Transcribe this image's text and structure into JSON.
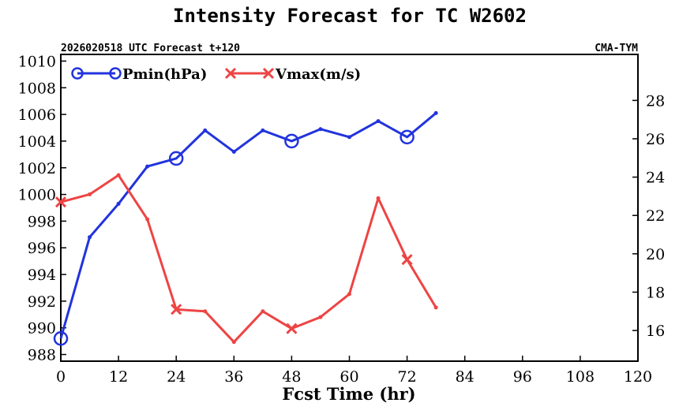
{
  "chart_data": {
    "type": "line",
    "title": "Intensity Forecast for TC W2602",
    "subtitle_left": "2026020518 UTC Forecast t+120",
    "subtitle_right": "CMA-TYM",
    "xlabel": "Fcst Time (hr)",
    "xlim": [
      0,
      120
    ],
    "x_ticks": [
      0,
      12,
      24,
      36,
      48,
      60,
      72,
      84,
      96,
      108,
      120
    ],
    "y_left_lim": [
      987.5,
      1010.5
    ],
    "y_left_ticks": [
      988,
      990,
      992,
      994,
      996,
      998,
      1000,
      1002,
      1004,
      1006,
      1008,
      1010
    ],
    "y_right_lim": [
      14.4,
      30.4
    ],
    "y_right_ticks": [
      16,
      18,
      20,
      22,
      24,
      26,
      28
    ],
    "series": [
      {
        "name": "Pmin(hPa)",
        "axis": "left",
        "color": "#2233dd",
        "marker": "circle",
        "x": [
          0,
          6,
          12,
          18,
          24,
          30,
          36,
          42,
          48,
          54,
          60,
          66,
          72,
          78
        ],
        "values": [
          989.2,
          996.8,
          999.3,
          1002.1,
          1002.7,
          1004.8,
          1003.2,
          1004.8,
          1004.0,
          1004.9,
          1004.3,
          1005.5,
          1004.3,
          1006.1
        ],
        "major_marker_x": [
          0,
          24,
          48,
          72
        ]
      },
      {
        "name": "Vmax(m/s)",
        "axis": "right",
        "color": "#ee4444",
        "marker": "x",
        "x": [
          0,
          6,
          12,
          18,
          24,
          30,
          36,
          42,
          48,
          54,
          60,
          66,
          72,
          78
        ],
        "values": [
          22.7,
          23.1,
          24.1,
          21.8,
          17.1,
          17.0,
          15.4,
          17.0,
          16.1,
          16.7,
          17.9,
          22.9,
          19.7,
          17.2
        ],
        "major_marker_x": [
          0,
          24,
          48,
          72
        ]
      }
    ]
  }
}
